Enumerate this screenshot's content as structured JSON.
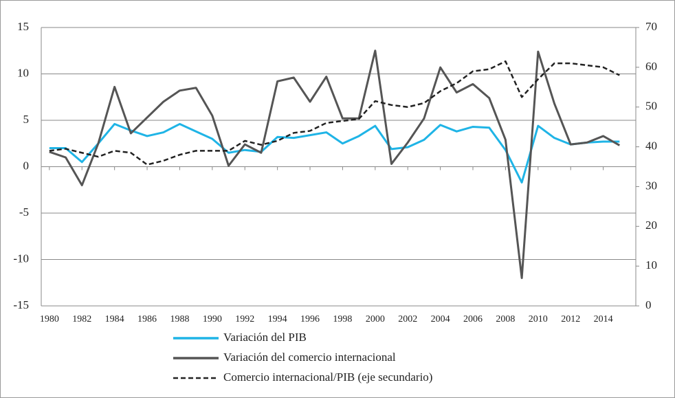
{
  "chart_data": {
    "type": "line",
    "x": [
      1980,
      1981,
      1982,
      1983,
      1984,
      1985,
      1986,
      1987,
      1988,
      1989,
      1990,
      1991,
      1992,
      1993,
      1994,
      1995,
      1996,
      1997,
      1998,
      1999,
      2000,
      2001,
      2002,
      2003,
      2004,
      2005,
      2006,
      2007,
      2008,
      2009,
      2010,
      2011,
      2012,
      2013,
      2014,
      2015
    ],
    "xlim": [
      1979.5,
      2016
    ],
    "xticks": [
      1980,
      1982,
      1984,
      1986,
      1988,
      1990,
      1992,
      1994,
      1996,
      1998,
      2000,
      2002,
      2004,
      2006,
      2008,
      2010,
      2012,
      2014
    ],
    "ylim": [
      -15,
      15
    ],
    "yticks": [
      -15,
      -10,
      -5,
      0,
      5,
      10,
      15
    ],
    "y2lim": [
      0,
      70
    ],
    "y2ticks": [
      0,
      10,
      20,
      30,
      40,
      50,
      60,
      70
    ],
    "grid": true,
    "series": [
      {
        "name": "Variación del PIB",
        "color": "#1fb4e6",
        "dash": false,
        "values": [
          2.0,
          2.0,
          0.5,
          2.5,
          4.6,
          3.9,
          3.3,
          3.7,
          4.6,
          3.8,
          3.0,
          1.5,
          1.8,
          1.6,
          3.2,
          3.1,
          3.4,
          3.7,
          2.5,
          3.3,
          4.4,
          1.9,
          2.1,
          2.9,
          4.5,
          3.8,
          4.3,
          4.2,
          1.8,
          -1.7,
          4.4,
          3.1,
          2.4,
          2.6,
          2.7,
          2.7
        ]
      },
      {
        "name": "Variación del comercio internacional",
        "color": "#555555",
        "dash": false,
        "values": [
          1.6,
          1.0,
          -2.0,
          2.5,
          8.6,
          3.6,
          5.3,
          7.0,
          8.2,
          8.5,
          5.5,
          0.1,
          2.4,
          1.5,
          9.2,
          9.6,
          7.0,
          9.7,
          5.2,
          5.2,
          12.5,
          0.3,
          2.6,
          5.2,
          10.7,
          8.0,
          8.9,
          7.4,
          2.9,
          -12.0,
          12.4,
          6.8,
          2.4,
          2.6,
          3.3,
          2.3
        ]
      },
      {
        "name": "Comercio internacional/PIB (eje secundario)",
        "color": "#222222",
        "dash": true,
        "axis": "y2",
        "values": [
          39,
          39.5,
          38.5,
          37.5,
          39,
          38.5,
          35.5,
          36.5,
          38,
          39,
          39,
          39,
          41.5,
          40.5,
          41.5,
          43.5,
          44,
          46,
          46.5,
          47,
          51.5,
          50.5,
          50,
          51,
          54,
          56,
          59,
          59.5,
          61.5,
          52.5,
          57,
          61,
          61,
          60.5,
          60,
          58
        ]
      }
    ]
  }
}
